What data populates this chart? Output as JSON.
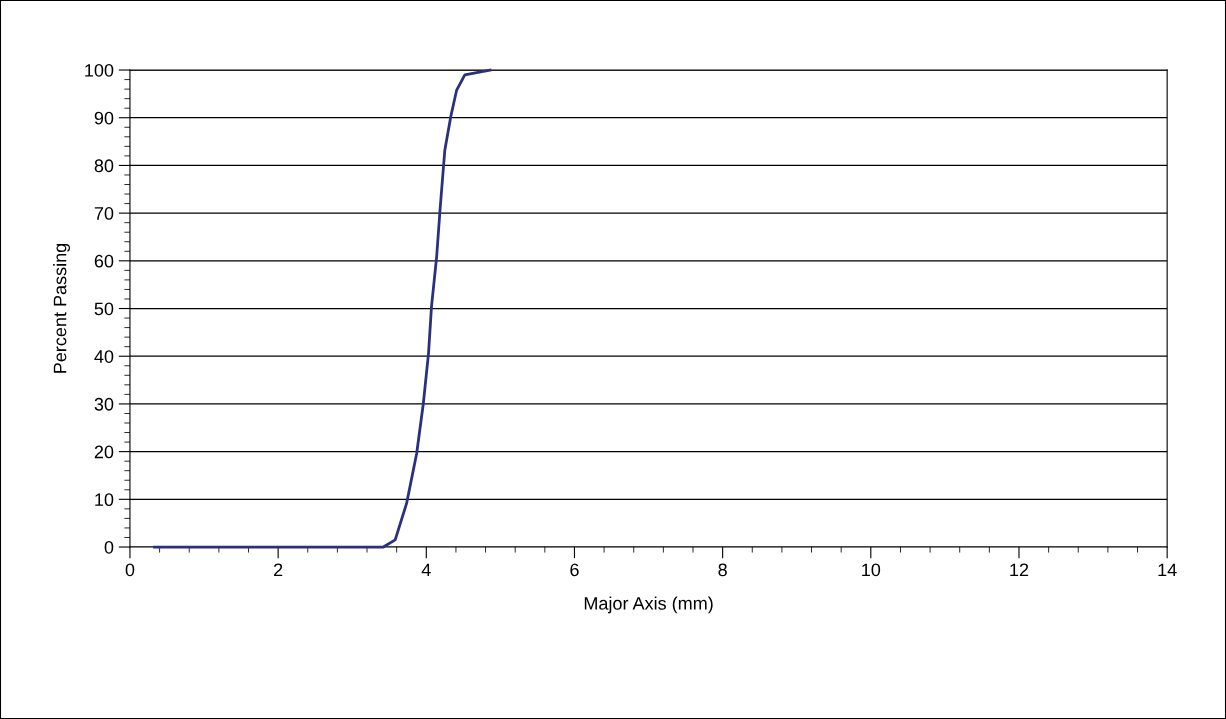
{
  "chart_data": {
    "type": "line",
    "xlabel": "Major Axis (mm)",
    "ylabel": "Percent Passing",
    "x": [
      0.33,
      3.42,
      3.58,
      3.735,
      3.87,
      3.96,
      4.03,
      4.07,
      4.14,
      4.185,
      4.25,
      4.33,
      4.41,
      4.52,
      4.86
    ],
    "series": [
      {
        "color": "#2b2f7f",
        "values": [
          0,
          0,
          1.5,
          9.2,
          19.6,
          30.1,
          40.6,
          50.4,
          60.9,
          70.6,
          83.2,
          90.2,
          95.8,
          99,
          100
        ]
      }
    ],
    "xlim": [
      0,
      14
    ],
    "xticks": [
      0,
      2,
      4,
      6,
      8,
      10,
      12,
      14
    ],
    "ylim": [
      0,
      100
    ],
    "yticks": [
      0,
      10,
      20,
      30,
      40,
      50,
      60,
      70,
      80,
      90,
      100
    ],
    "grid": "y",
    "legend": false,
    "marker": "none",
    "line_style": "solid"
  }
}
